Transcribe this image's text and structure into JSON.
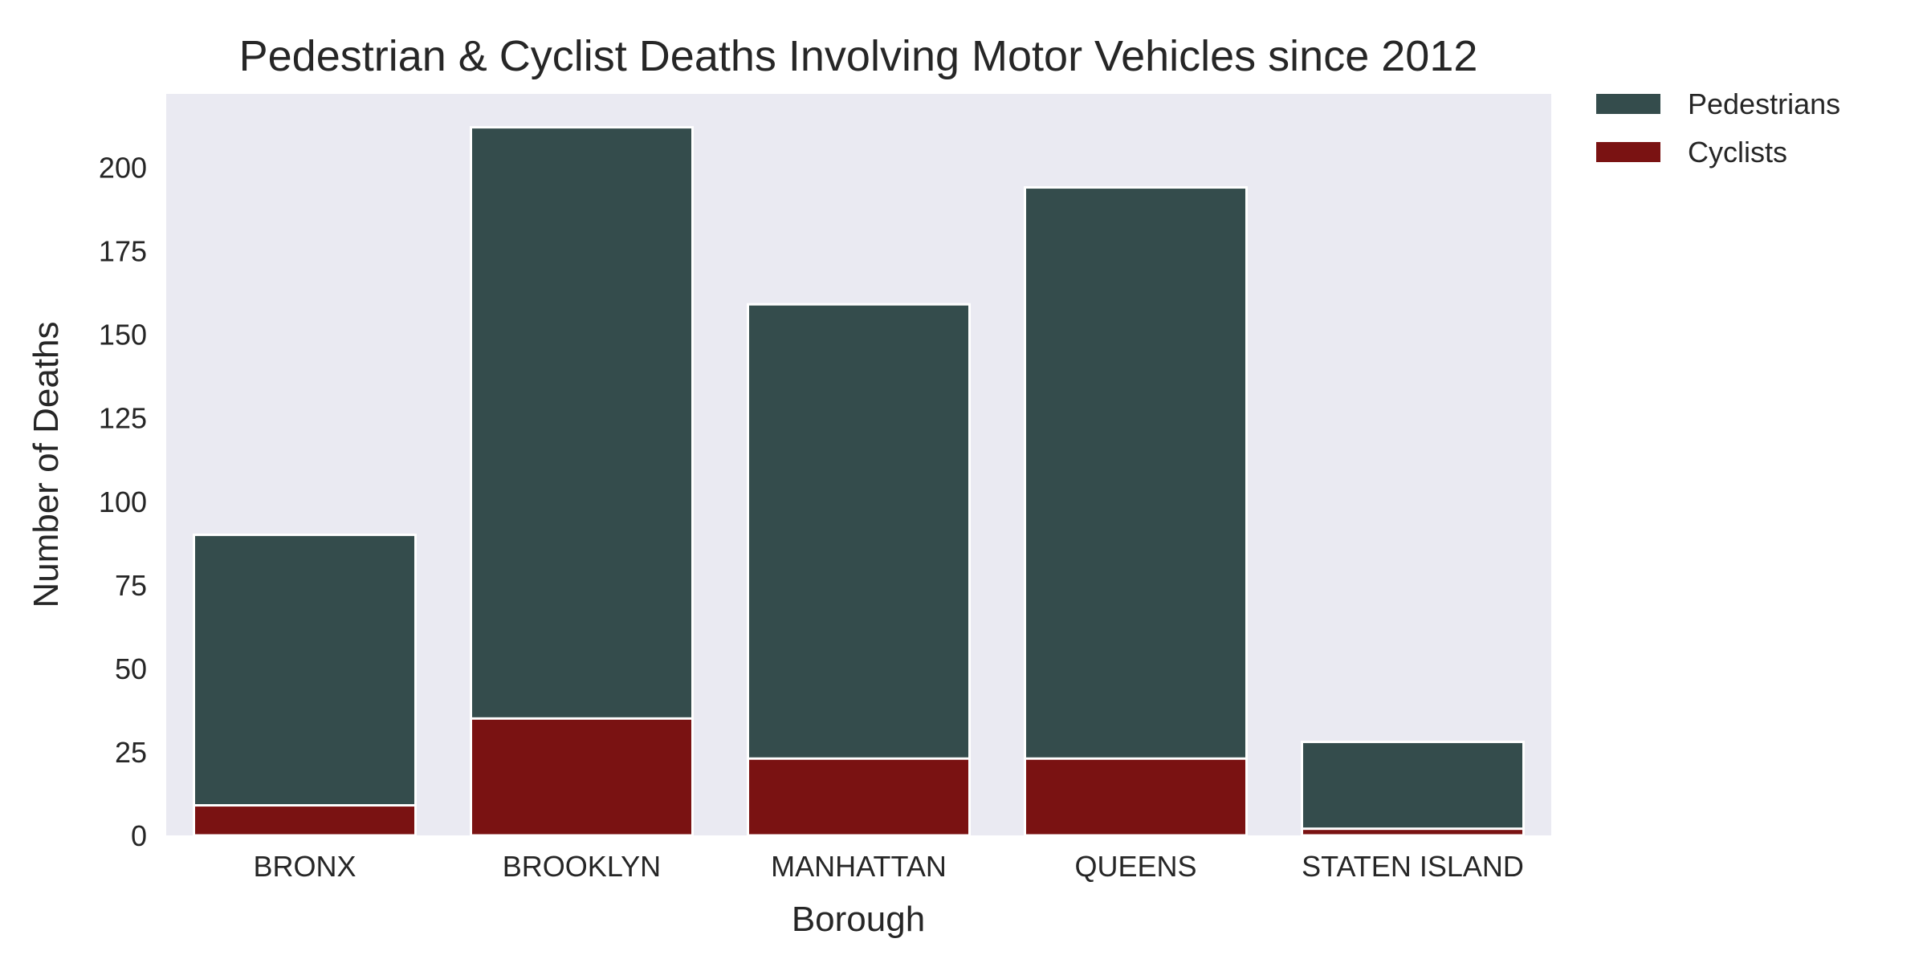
{
  "colors": {
    "pedestrians": "#344c4c",
    "cyclists": "#7a1212",
    "plot_background": "#eaeaf2",
    "bar_edge": "#ffffff"
  },
  "chart_data": {
    "type": "bar",
    "stacked": false,
    "overlay": true,
    "title": "Pedestrian & Cyclist Deaths Involving Motor Vehicles since 2012",
    "xlabel": "Borough",
    "ylabel": "Number of Deaths",
    "categories": [
      "BRONX",
      "BROOKLYN",
      "MANHATTAN",
      "QUEENS",
      "STATEN ISLAND"
    ],
    "series": [
      {
        "name": "Pedestrians",
        "values": [
          90,
          212,
          159,
          194,
          28
        ]
      },
      {
        "name": "Cyclists",
        "values": [
          9,
          35,
          23,
          23,
          2
        ]
      }
    ],
    "ylim": [
      0,
      222
    ],
    "yticks": [
      0,
      25,
      50,
      75,
      100,
      125,
      150,
      175,
      200
    ],
    "grid": false,
    "legend_position": "outside-top-right"
  }
}
